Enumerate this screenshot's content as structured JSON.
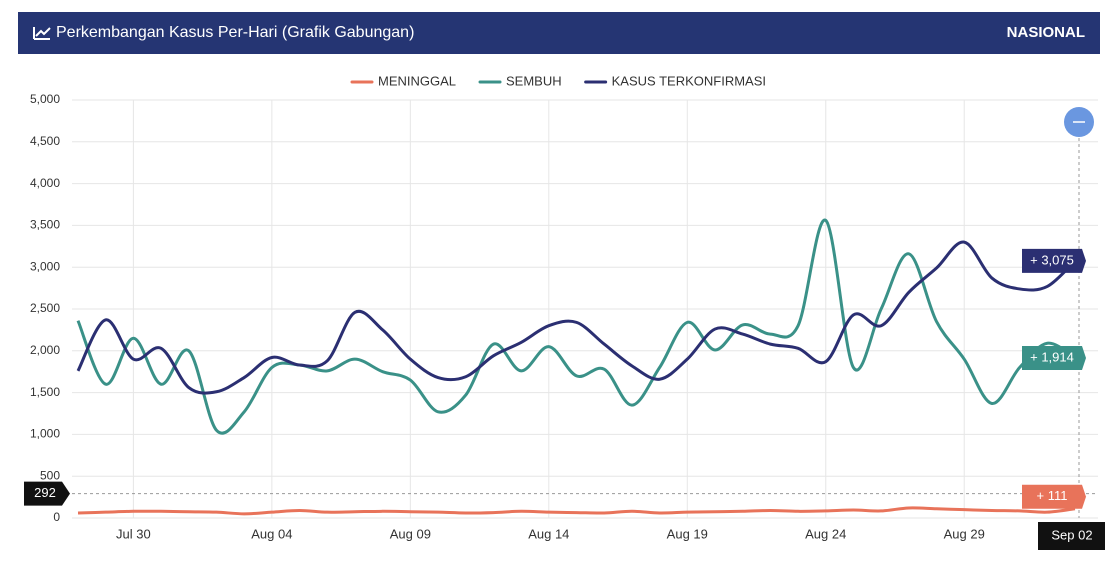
{
  "header": {
    "title": "Perkembangan Kasus Per-Hari (Grafik Gabungan)",
    "region": "NASIONAL"
  },
  "chart_data": {
    "type": "line",
    "categories": [
      null,
      null,
      "Jul 30",
      null,
      null,
      null,
      null,
      "Aug 04",
      null,
      null,
      null,
      null,
      "Aug 09",
      null,
      null,
      null,
      null,
      "Aug 14",
      null,
      null,
      null,
      null,
      "Aug 19",
      null,
      null,
      null,
      null,
      "Aug 24",
      null,
      null,
      null,
      null,
      "Aug 29",
      null,
      null,
      null,
      "Sep 02"
    ],
    "series": [
      {
        "name": "MENINGGAL",
        "color": "#e8735a",
        "values": [
          60,
          70,
          80,
          80,
          75,
          70,
          50,
          70,
          90,
          70,
          75,
          80,
          75,
          70,
          60,
          65,
          80,
          70,
          65,
          60,
          80,
          60,
          70,
          75,
          80,
          90,
          80,
          85,
          95,
          85,
          120,
          110,
          100,
          90,
          85,
          70,
          111
        ],
        "value_labels": [
          null,
          null,
          null,
          null,
          null,
          null,
          null,
          null,
          null,
          null,
          null,
          null,
          null,
          null,
          null,
          null,
          null,
          null,
          null,
          null,
          null,
          null,
          null,
          null,
          null,
          null,
          null,
          null,
          null,
          null,
          null,
          null,
          null,
          null,
          null,
          null,
          "+ 111"
        ]
      },
      {
        "name": "SEMBUH",
        "color": "#3a9188",
        "values": [
          2360,
          1600,
          2150,
          1600,
          2000,
          1050,
          1270,
          1800,
          1830,
          1760,
          1900,
          1750,
          1650,
          1270,
          1470,
          2080,
          1760,
          2050,
          1700,
          1780,
          1350,
          1800,
          2340,
          2010,
          2310,
          2200,
          2300,
          3560,
          1800,
          2500,
          3160,
          2350,
          1900,
          1370,
          1800,
          2090,
          1914
        ],
        "value_labels": [
          null,
          null,
          null,
          null,
          null,
          null,
          null,
          null,
          null,
          null,
          null,
          null,
          null,
          null,
          null,
          null,
          null,
          null,
          null,
          null,
          null,
          null,
          null,
          null,
          null,
          null,
          null,
          null,
          null,
          null,
          null,
          null,
          null,
          null,
          null,
          null,
          "+ 1,914"
        ]
      },
      {
        "name": "KASUS TERKONFIRMASI",
        "color": "#2b2f72",
        "values": [
          1760,
          2370,
          1900,
          2030,
          1560,
          1510,
          1680,
          1920,
          1830,
          1880,
          2460,
          2250,
          1900,
          1680,
          1690,
          1940,
          2100,
          2300,
          2340,
          2080,
          1820,
          1660,
          1900,
          2260,
          2200,
          2080,
          2030,
          1870,
          2430,
          2300,
          2700,
          2990,
          3300,
          2870,
          2740,
          2770,
          3075
        ],
        "value_labels": [
          null,
          null,
          null,
          null,
          null,
          null,
          null,
          null,
          null,
          null,
          null,
          null,
          null,
          null,
          null,
          null,
          null,
          null,
          null,
          null,
          null,
          null,
          null,
          null,
          null,
          null,
          null,
          null,
          null,
          null,
          null,
          null,
          null,
          null,
          null,
          null,
          "+ 3,075"
        ]
      }
    ],
    "ylim": [
      0,
      5000
    ],
    "yticks": [
      0,
      500,
      {
        "value": 1000,
        "label": "1,000"
      },
      {
        "value": 1500,
        "label": "1,500"
      },
      {
        "value": 2000,
        "label": "2,000"
      },
      {
        "value": 2500,
        "label": "2,500"
      },
      {
        "value": 3000,
        "label": "3,000"
      },
      {
        "value": 3500,
        "label": "3,500"
      },
      {
        "value": 4000,
        "label": "4,000"
      },
      {
        "value": 4500,
        "label": "4,500"
      },
      {
        "value": 5000,
        "label": "5,000"
      }
    ],
    "grid": true,
    "legend": "top",
    "crosshair": {
      "y": 292
    }
  }
}
